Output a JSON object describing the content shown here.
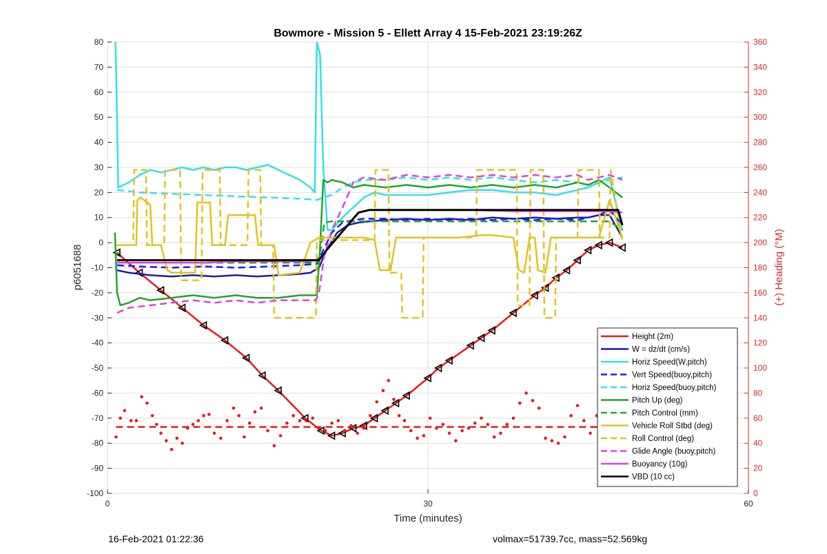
{
  "chart_data": {
    "type": "line",
    "title": "Bowmore - Mission 5 - Ellett Array 4 15-Feb-2021 23:19:26Z",
    "xlabel": "Time (minutes)",
    "ylabel": "p6051688",
    "y2label": "(+) Heading (°M)",
    "xlim": [
      0,
      60
    ],
    "ylim": [
      -100,
      80
    ],
    "y2lim": [
      0,
      360
    ],
    "xticks": [
      "0",
      "30",
      "60"
    ],
    "yticks": [
      "80",
      "70",
      "60",
      "50",
      "40",
      "30",
      "20",
      "10",
      "0",
      "-10",
      "-20",
      "-30",
      "-40",
      "-50",
      "-60",
      "-70",
      "-80",
      "-90",
      "-100"
    ],
    "y2ticks": [
      "360",
      "340",
      "320",
      "300",
      "280",
      "260",
      "240",
      "220",
      "200",
      "180",
      "160",
      "140",
      "120",
      "100",
      "80",
      "60",
      "40",
      "20",
      "0"
    ],
    "grid": true,
    "legend_position": "bottom-right",
    "legend": [
      "Height (2m)",
      "W = dz/dt (cm/s)",
      "Horiz Speed(W,pitch)",
      "Vert Speed(buoy,pitch)",
      "Horiz Speed(buoy,pitch)",
      "Pitch Up (deg)",
      "Pitch Control (mm)",
      "Vehicle Roll Stbd (deg)",
      "Roll Control (deg)",
      "Glide Angle (buoy,pitch)",
      "Buoyancy (10g)",
      "VBD (10 cc)"
    ],
    "series": [
      {
        "name": "Height (2m)",
        "color": "#e41a1c",
        "style": "solid",
        "width": 2.5,
        "markers": "triangle",
        "x": [
          0.9,
          3,
          5,
          7,
          9,
          11,
          13,
          14.5,
          16,
          18.5,
          20,
          21,
          22,
          23,
          24,
          25,
          26,
          27,
          28,
          30,
          31,
          32,
          34,
          35,
          36,
          38,
          40,
          41,
          42,
          43,
          44,
          45,
          46,
          47,
          48.2
        ],
        "y": [
          -4,
          -12,
          -19,
          -26,
          -33,
          -39,
          -46,
          -53,
          -59,
          -70,
          -75,
          -77,
          -76,
          -74,
          -73,
          -70,
          -67,
          -64,
          -61,
          -54,
          -50,
          -47,
          -41,
          -38,
          -35,
          -28,
          -21,
          -18,
          -14,
          -11,
          -7,
          -3,
          -1,
          0,
          -2
        ]
      },
      {
        "name": "W = dz/dt (cm/s)",
        "color": "#1a1aaf",
        "style": "solid",
        "width": 2.5,
        "x": [
          0.9,
          2,
          4,
          6,
          8,
          10,
          12,
          14,
          16,
          18,
          19,
          19.8,
          20.5,
          21.5,
          22.5,
          23.5,
          24.5,
          26,
          28,
          30,
          32,
          34,
          36,
          38,
          40,
          42,
          44,
          45,
          46,
          47,
          48.2
        ],
        "y": [
          -11,
          -12,
          -13,
          -13.5,
          -13,
          -13.5,
          -13,
          -13.5,
          -13,
          -12.5,
          -12,
          -10,
          -3,
          4,
          7,
          8,
          8.5,
          9,
          9.5,
          9,
          9.5,
          9,
          10,
          9.5,
          10,
          9.5,
          10,
          10,
          11,
          11,
          2
        ]
      },
      {
        "name": "Horiz Speed(W,pitch)",
        "color": "#32e0e8",
        "style": "solid",
        "width": 2.5,
        "x": [
          0.75,
          0.85,
          1,
          2,
          3,
          4,
          5,
          6,
          7,
          8,
          9,
          10,
          11,
          12,
          13,
          14,
          15,
          16,
          17,
          18,
          19,
          19.4,
          19.6,
          19.9,
          20.2,
          20.6,
          21,
          22,
          23,
          24,
          25,
          26,
          28,
          30,
          32,
          34,
          36,
          38,
          40,
          42,
          43,
          44,
          45,
          46,
          47,
          48.2
        ],
        "y": [
          80,
          60,
          22,
          24,
          27,
          29,
          28,
          29,
          30,
          29,
          30,
          29,
          30,
          30,
          29,
          30,
          31,
          29,
          27,
          25,
          22,
          20,
          80,
          75,
          30,
          5,
          5,
          10,
          14,
          18,
          20,
          19,
          19,
          19,
          20,
          21,
          21,
          20,
          20,
          19,
          20,
          21,
          22,
          24,
          26,
          5
        ]
      },
      {
        "name": "Vert Speed(buoy,pitch)",
        "color": "#1a1aff",
        "style": "dashed",
        "width": 2.5,
        "x": [
          0.9,
          3,
          6,
          9,
          12,
          15,
          18,
          19.6,
          20.2,
          21,
          22,
          23,
          24,
          26,
          28,
          30,
          32,
          34,
          36,
          38,
          40,
          42,
          44,
          45,
          46,
          47,
          48.2
        ],
        "y": [
          -9,
          -9.5,
          -10,
          -9.5,
          -10,
          -9.5,
          -9,
          -8.5,
          -3,
          4,
          8,
          9,
          9.5,
          9.5,
          9,
          9.5,
          9,
          9.5,
          9,
          9.5,
          9,
          9.5,
          9,
          10,
          11,
          13,
          7
        ]
      },
      {
        "name": "Horiz Speed(buoy,pitch)",
        "color": "#32e0e8",
        "style": "dashed",
        "width": 2.5,
        "x": [
          0.9,
          3,
          6,
          9,
          12,
          15,
          18,
          19.6,
          20.2,
          21,
          22,
          23,
          24,
          26,
          28,
          30,
          32,
          34,
          36,
          38,
          40,
          42,
          44,
          45,
          46,
          47,
          48.2
        ],
        "y": [
          21,
          20,
          19.5,
          19,
          18.5,
          18,
          17.5,
          17,
          18,
          19,
          22,
          24,
          25,
          25,
          26,
          25,
          26,
          25,
          26,
          25,
          24,
          25,
          24,
          23,
          24,
          25,
          26
        ]
      },
      {
        "name": "Pitch Up (deg)",
        "color": "#22a32a",
        "style": "solid",
        "width": 2.5,
        "x": [
          0.7,
          0.9,
          1.2,
          2,
          3,
          4,
          6,
          8,
          10,
          12,
          14,
          16,
          18,
          19.6,
          19.9,
          20.2,
          20.6,
          21,
          22,
          23,
          24,
          26,
          28,
          30,
          32,
          34,
          36,
          38,
          40,
          42,
          44,
          45,
          46,
          47,
          48.2
        ],
        "y": [
          4,
          -20,
          -25,
          -24,
          -22,
          -23,
          -22,
          -21,
          -22,
          -21,
          -22,
          -22,
          -21,
          -21,
          -2,
          25,
          24,
          25,
          24,
          22,
          23,
          22,
          23,
          22,
          23,
          22,
          23,
          22,
          23,
          22,
          24,
          23,
          25,
          22,
          18
        ]
      },
      {
        "name": "Pitch Control (mm)",
        "color": "#22a32a",
        "style": "dashed",
        "width": 2.5,
        "x": [
          0.9,
          3,
          6,
          9,
          12,
          15,
          18,
          19.6,
          20,
          20.3,
          21,
          24,
          27,
          30,
          33,
          36,
          39,
          42,
          45,
          46,
          47,
          48.2
        ],
        "y": [
          -8,
          -8,
          -8,
          -8,
          -8,
          -8,
          -8,
          -8,
          -2,
          8,
          8.5,
          8.5,
          8.5,
          8.5,
          8.5,
          8.5,
          8.5,
          8.5,
          8.5,
          8.5,
          8.5,
          5
        ]
      },
      {
        "name": "Vehicle Roll Stbd (deg)",
        "color": "#e3c21c",
        "style": "solid",
        "width": 2.5,
        "x": [
          0.8,
          1.5,
          2.7,
          2.8,
          3.1,
          4,
          4.2,
          5,
          5.6,
          6,
          8.2,
          8.4,
          9.6,
          9.8,
          11,
          11.3,
          13.8,
          14.1,
          15.6,
          16,
          18,
          19,
          19.8,
          20.3,
          22,
          24,
          25,
          25.5,
          26.5,
          27,
          28,
          29,
          30,
          32,
          33,
          35,
          36,
          38,
          38.5,
          39,
          39.5,
          40,
          40.3,
          41,
          41.5,
          42,
          43,
          44,
          45,
          46,
          47,
          48.2
        ],
        "y": [
          -1,
          -1,
          -1,
          17,
          18,
          15,
          -1,
          -1,
          -11,
          -12,
          -12,
          16,
          16,
          -1,
          -1,
          11,
          11,
          -1,
          -1,
          -13,
          -12,
          0,
          2,
          2,
          2,
          2,
          1,
          -11,
          -11,
          2,
          2,
          2,
          2,
          2,
          2,
          3,
          3,
          2,
          -11,
          -12,
          2,
          2,
          -11,
          -12,
          2,
          2,
          2,
          2,
          2,
          2,
          17,
          2
        ]
      },
      {
        "name": "Roll Control (deg)",
        "color": "#e3c21c",
        "style": "dashed",
        "width": 2.5,
        "x": [
          0.8,
          2.4,
          2.5,
          3.6,
          3.7,
          5.3,
          5.4,
          6.8,
          6.9,
          8.8,
          8.9,
          10.5,
          10.6,
          13.1,
          13.2,
          14.3,
          14.4,
          15.5,
          15.6,
          16,
          17,
          19.5,
          19.6,
          25,
          25.1,
          26.3,
          26.4,
          27.5,
          27.6,
          29.5,
          29.6,
          34.5,
          34.6,
          38.3,
          38.4,
          39.5,
          39.6,
          40.8,
          40.9,
          41.9,
          42,
          44,
          44.1,
          46,
          46.1,
          47,
          47.1,
          48.2
        ],
        "y": [
          -1,
          -1,
          29,
          29,
          -1,
          -1,
          29,
          29,
          -15,
          -15,
          29,
          29,
          -1,
          -1,
          29,
          29,
          -1,
          -1,
          -30,
          -30,
          -30,
          -30,
          1,
          1,
          29,
          29,
          -12,
          -12,
          -30,
          -30,
          2,
          2,
          29,
          29,
          -25,
          -25,
          29,
          29,
          -30,
          -30,
          2,
          2,
          29,
          29,
          2,
          2,
          29,
          0
        ]
      },
      {
        "name": "Glide Angle (buoy,pitch)",
        "color": "#e040e0",
        "style": "dashed",
        "width": 2.5,
        "x": [
          0.9,
          2,
          4,
          6,
          8,
          10,
          12,
          14,
          16,
          18,
          19.5,
          19.8,
          20.3,
          21,
          22,
          23,
          24,
          26,
          28,
          30,
          32,
          34,
          36,
          38,
          40,
          42,
          44,
          45,
          46,
          47,
          48.2
        ],
        "y": [
          -28,
          -26,
          -25,
          -24,
          -23,
          -24,
          -23,
          -24,
          -23,
          -23,
          -23,
          -20,
          -5,
          5,
          14,
          24,
          26,
          25,
          27,
          26,
          27,
          26,
          27,
          26,
          27,
          26,
          27,
          25,
          26,
          27,
          25
        ]
      },
      {
        "name": "Buoyancy (10g)",
        "color": "#e040e0",
        "style": "solid",
        "width": 2.5,
        "x": [
          0.9,
          3,
          6,
          9,
          12,
          15,
          18,
          19.8,
          20.5,
          21.5,
          22.5,
          23.5,
          24.5,
          26,
          30,
          34,
          38,
          42,
          44,
          45,
          46,
          47,
          48.2
        ],
        "y": [
          -8,
          -8,
          -8,
          -8,
          -7.5,
          -7.5,
          -7.5,
          -7,
          -3,
          2,
          7,
          12,
          13,
          13,
          13,
          13,
          12.5,
          12.5,
          12.5,
          12.5,
          12.5,
          12.5,
          12
        ]
      },
      {
        "name": "VBD (10 cc)",
        "color": "#000000",
        "style": "solid",
        "width": 3,
        "x": [
          0.9,
          3,
          6,
          9,
          12,
          15,
          18,
          19.8,
          20.5,
          21.5,
          22.5,
          23.5,
          24.5,
          26,
          30,
          34,
          38,
          42,
          44,
          45,
          46,
          47,
          47.8,
          48.2
        ],
        "y": [
          -7,
          -7,
          -7,
          -7,
          -7,
          -7,
          -7,
          -7,
          -3,
          2,
          7,
          12,
          13,
          13,
          13,
          13,
          13,
          13,
          13,
          13,
          13,
          13,
          13,
          7
        ]
      }
    ],
    "heading": {
      "color": "#e41a1c",
      "mean_style": "dashed",
      "mean": 53,
      "points_x": [
        0.8,
        1.2,
        1.6,
        2.2,
        2.7,
        3.2,
        3.7,
        4.2,
        4.6,
        5,
        5.5,
        6,
        6.5,
        7,
        7.5,
        8,
        8.5,
        9,
        9.5,
        10,
        10.6,
        11.2,
        11.8,
        12.3,
        12.8,
        13.3,
        13.8,
        14.4,
        15,
        15.6,
        16.2,
        16.8,
        17.4,
        18,
        18.6,
        19.2,
        19.8,
        20.4,
        21,
        21.6,
        22.2,
        22.8,
        23.4,
        24,
        24.6,
        25.2,
        25.8,
        26.3,
        26.8,
        27.3,
        27.8,
        28.4,
        29,
        29.6,
        30.2,
        30.8,
        31.4,
        32,
        32.6,
        33.2,
        33.8,
        34.4,
        35,
        35.6,
        36.2,
        36.8,
        37.4,
        38,
        38.6,
        39.2,
        39.8,
        40.4,
        41,
        41.6,
        42.2,
        42.8,
        43.4,
        44,
        44.6,
        45.2,
        45.8,
        46.4,
        47,
        47.6
      ],
      "points_y": [
        45,
        60,
        66,
        58,
        58,
        77,
        72,
        62,
        55,
        48,
        42,
        35,
        44,
        40,
        52,
        55,
        58,
        62,
        63,
        48,
        44,
        58,
        68,
        62,
        45,
        56,
        65,
        68,
        50,
        38,
        46,
        56,
        62,
        58,
        58,
        60,
        52,
        50,
        56,
        58,
        50,
        54,
        48,
        52,
        62,
        73,
        82,
        90,
        75,
        62,
        58,
        50,
        44,
        46,
        60,
        52,
        55,
        48,
        42,
        50,
        52,
        56,
        60,
        55,
        45,
        48,
        55,
        60,
        72,
        80,
        74,
        68,
        44,
        42,
        40,
        45,
        62,
        70,
        58,
        48,
        62,
        42,
        38,
        60
      ]
    }
  },
  "footer": {
    "left": "16-Feb-2021 01:22:36",
    "right": "volmax=51739.7cc, mass=52.569kg"
  }
}
